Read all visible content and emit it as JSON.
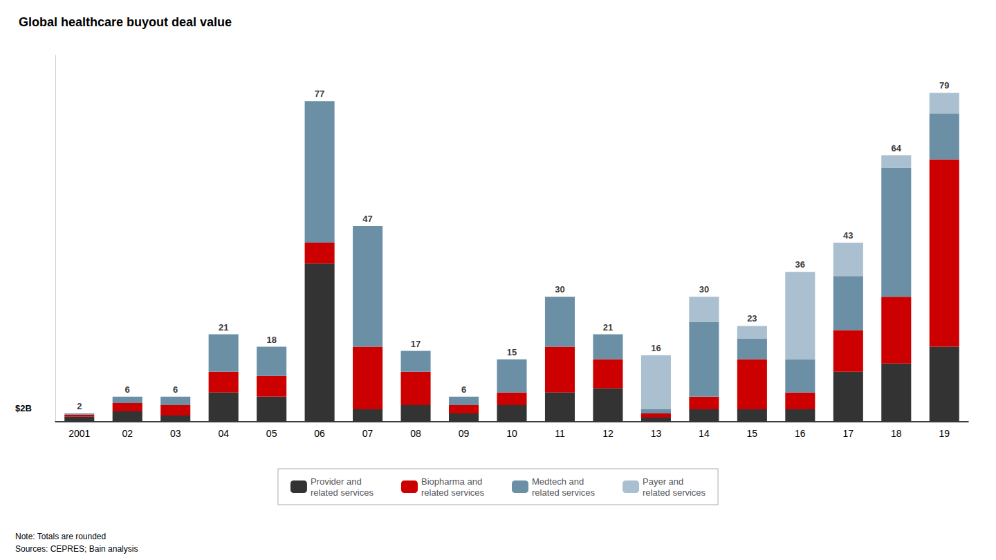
{
  "chart_data": {
    "type": "bar",
    "title": "Global healthcare buyout deal value",
    "categories": [
      "2001",
      "02",
      "03",
      "04",
      "05",
      "06",
      "07",
      "08",
      "09",
      "10",
      "11",
      "12",
      "13",
      "14",
      "15",
      "16",
      "17",
      "18",
      "19"
    ],
    "series": [
      {
        "name": "Provider and\nrelated services",
        "color": "#333333",
        "values": [
          1.2,
          2.5,
          1.5,
          7,
          6,
          38,
          3,
          4,
          2,
          4,
          7,
          8,
          1,
          3,
          3,
          3,
          12,
          14,
          18
        ]
      },
      {
        "name": "Biopharma and\nrelated services",
        "color": "#cc0000",
        "values": [
          0.5,
          2.0,
          2.5,
          5,
          5,
          5,
          15,
          8,
          2,
          3,
          11,
          7,
          1,
          3,
          12,
          4,
          10,
          16,
          45
        ]
      },
      {
        "name": "Medtech and\nrelated services",
        "color": "#6b8fa5",
        "values": [
          0.3,
          1.5,
          2.0,
          9,
          7,
          34,
          29,
          5,
          2,
          8,
          12,
          6,
          1,
          18,
          5,
          8,
          13,
          31,
          11
        ]
      },
      {
        "name": "Payer and\nrelated services",
        "color": "#aabfcf",
        "values": [
          0.0,
          0.0,
          0.0,
          0,
          0,
          0,
          0,
          0,
          0,
          0,
          0,
          0,
          13,
          6,
          3,
          21,
          8,
          3,
          5
        ]
      }
    ],
    "totals": [
      2,
      6,
      6,
      21,
      18,
      77,
      47,
      17,
      6,
      15,
      30,
      21,
      16,
      30,
      23,
      36,
      43,
      64,
      79
    ],
    "annotations": [
      "$2B",
      "Note: Totals are rounded",
      "Sources: CEPRES; Bain analysis"
    ],
    "ylim": [
      0,
      88
    ],
    "stacked": true,
    "grid": false,
    "legend": "bottom",
    "tick_labels": "x"
  }
}
